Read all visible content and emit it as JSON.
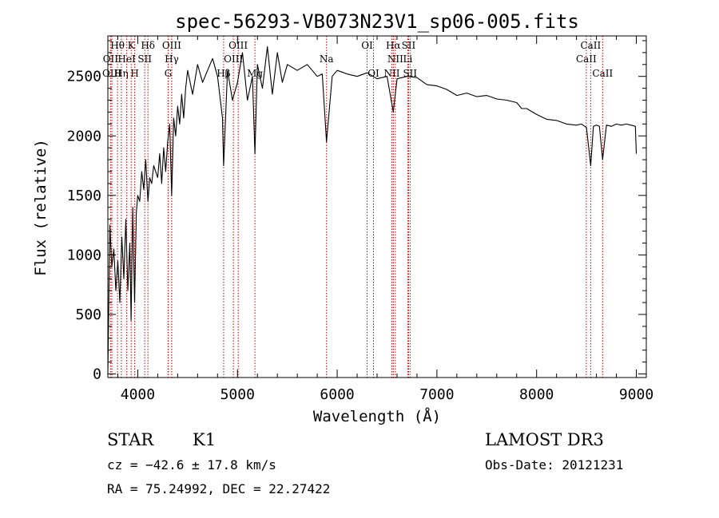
{
  "chart_data": {
    "type": "line",
    "title": "spec-56293-VB073N23V1_sp06-005.fits",
    "xlabel": "Wavelength (Å)",
    "ylabel": "Flux (relative)",
    "xlim": [
      3700,
      9100
    ],
    "ylim": [
      -30,
      2840
    ],
    "grid": false,
    "x_ticks": [
      4000,
      5000,
      6000,
      7000,
      8000,
      9000
    ],
    "y_ticks": [
      0,
      500,
      1000,
      1500,
      2000,
      2500
    ],
    "x_tick_labels": [
      "4000",
      "5000",
      "6000",
      "7000",
      "8000",
      "9000"
    ],
    "y_tick_labels": [
      "0",
      "500",
      "1000",
      "1500",
      "2000",
      "2500"
    ],
    "series": [
      {
        "name": "",
        "x": [
          3700,
          3720,
          3740,
          3760,
          3780,
          3800,
          3820,
          3840,
          3860,
          3880,
          3900,
          3920,
          3933,
          3950,
          3968,
          3985,
          4000,
          4020,
          4040,
          4060,
          4080,
          4102,
          4120,
          4140,
          4160,
          4180,
          4200,
          4220,
          4240,
          4260,
          4280,
          4300,
          4320,
          4340,
          4360,
          4380,
          4400,
          4420,
          4440,
          4460,
          4480,
          4500,
          4550,
          4600,
          4650,
          4700,
          4750,
          4800,
          4850,
          4861,
          4900,
          4950,
          5000,
          5050,
          5100,
          5150,
          5175,
          5200,
          5250,
          5300,
          5350,
          5400,
          5450,
          5500,
          5600,
          5700,
          5800,
          5850,
          5893,
          5950,
          6000,
          6100,
          6200,
          6300,
          6400,
          6500,
          6563,
          6600,
          6700,
          6800,
          6900,
          7000,
          7100,
          7200,
          7300,
          7400,
          7500,
          7600,
          7700,
          7800,
          7850,
          7900,
          8000,
          8100,
          8200,
          8300,
          8400,
          8450,
          8500,
          8542,
          8570,
          8600,
          8630,
          8662,
          8700,
          8750,
          8800,
          8850,
          8900,
          8950,
          8990,
          9000
        ],
        "values": [
          0,
          1250,
          900,
          1050,
          700,
          950,
          600,
          1150,
          800,
          1300,
          700,
          1100,
          450,
          1400,
          600,
          1350,
          1500,
          1450,
          1700,
          1550,
          1800,
          1450,
          1650,
          1600,
          1750,
          1700,
          1650,
          1850,
          1600,
          1900,
          1700,
          1950,
          2100,
          1500,
          2150,
          2000,
          2250,
          2100,
          2350,
          2150,
          2400,
          2550,
          2350,
          2600,
          2450,
          2550,
          2650,
          2500,
          2150,
          1750,
          2550,
          2300,
          2450,
          2700,
          2300,
          2500,
          1850,
          2600,
          2400,
          2750,
          2350,
          2700,
          2450,
          2600,
          2550,
          2600,
          2500,
          2520,
          1950,
          2500,
          2550,
          2520,
          2500,
          2530,
          2480,
          2500,
          2200,
          2480,
          2500,
          2490,
          2430,
          2420,
          2390,
          2340,
          2360,
          2330,
          2340,
          2310,
          2300,
          2280,
          2230,
          2230,
          2180,
          2140,
          2130,
          2100,
          2090,
          2100,
          2070,
          1750,
          2080,
          2090,
          2080,
          1800,
          2090,
          2080,
          2100,
          2090,
          2100,
          2090,
          2080,
          1850
        ]
      }
    ],
    "line_markers": [
      {
        "name": "Hθ",
        "x": 3797
      },
      {
        "name": "OII",
        "x": 3727
      },
      {
        "name": "OIII",
        "x": 3740
      },
      {
        "name": "Hη",
        "x": 3835
      },
      {
        "name": "HeI",
        "x": 3889
      },
      {
        "name": "K",
        "x": 3934
      },
      {
        "name": "H",
        "x": 3969
      },
      {
        "name": "SII",
        "x": 4070
      },
      {
        "name": "Hδ",
        "x": 4102
      },
      {
        "name": "OIII",
        "x": 4340
      },
      {
        "name": "Hγ",
        "x": 4341
      },
      {
        "name": "G",
        "x": 4305
      },
      {
        "name": "Hβ",
        "x": 4861
      },
      {
        "name": "OIII",
        "x": 5007
      },
      {
        "name": "OIII",
        "x": 4959
      },
      {
        "name": "Mg",
        "x": 5175
      },
      {
        "name": "Na",
        "x": 5893
      },
      {
        "name": "OI",
        "x": 6300
      },
      {
        "name": "OI",
        "x": 6364
      },
      {
        "name": "Hα",
        "x": 6563
      },
      {
        "name": "NII",
        "x": 6548
      },
      {
        "name": "NII",
        "x": 6583
      },
      {
        "name": "SII",
        "x": 6716
      },
      {
        "name": "SII",
        "x": 6731
      },
      {
        "name": "Li",
        "x": 6708
      },
      {
        "name": "CaII",
        "x": 8498
      },
      {
        "name": "CaII",
        "x": 8542
      },
      {
        "name": "CaII",
        "x": 8662
      }
    ],
    "marker_labels": [
      {
        "text": "Hθ",
        "x": 3797,
        "row": 0
      },
      {
        "text": "K",
        "x": 3934,
        "row": 0
      },
      {
        "text": "Hδ",
        "x": 4102,
        "row": 0
      },
      {
        "text": "OIII",
        "x": 4340,
        "row": 0
      },
      {
        "text": "OIII",
        "x": 5007,
        "row": 0
      },
      {
        "text": "OI",
        "x": 6300,
        "row": 0
      },
      {
        "text": "Hα",
        "x": 6563,
        "row": 0
      },
      {
        "text": "SII",
        "x": 6716,
        "row": 0
      },
      {
        "text": "CaII",
        "x": 8542,
        "row": 0
      },
      {
        "text": "OII",
        "x": 3727,
        "row": 1
      },
      {
        "text": "HeI",
        "x": 3889,
        "row": 1
      },
      {
        "text": "SII",
        "x": 4070,
        "row": 1
      },
      {
        "text": "Hγ",
        "x": 4341,
        "row": 1
      },
      {
        "text": "OIII",
        "x": 4959,
        "row": 1
      },
      {
        "text": "Na",
        "x": 5893,
        "row": 1
      },
      {
        "text": "NII",
        "x": 6583,
        "row": 1
      },
      {
        "text": "Li",
        "x": 6708,
        "row": 1
      },
      {
        "text": "CaII",
        "x": 8498,
        "row": 1
      },
      {
        "text": "OIII",
        "x": 3740,
        "row": 2
      },
      {
        "text": "Hη",
        "x": 3835,
        "row": 2
      },
      {
        "text": "H",
        "x": 3969,
        "row": 2
      },
      {
        "text": "G",
        "x": 4305,
        "row": 2
      },
      {
        "text": "Hβ",
        "x": 4861,
        "row": 2
      },
      {
        "text": "Mg",
        "x": 5175,
        "row": 2
      },
      {
        "text": "OI",
        "x": 6364,
        "row": 2
      },
      {
        "text": "NII",
        "x": 6548,
        "row": 2
      },
      {
        "text": "SII",
        "x": 6731,
        "row": 2
      },
      {
        "text": "CaII",
        "x": 8662,
        "row": 2
      }
    ],
    "marker_color": "#cc0000",
    "line_color": "#000000"
  },
  "info": {
    "class": "STAR",
    "subclass": "K1",
    "survey": "LAMOST DR3",
    "cz": "cz = −42.6 ± 17.8 km/s",
    "obs_date": "Obs-Date: 20121231",
    "radec": "RA =  75.24992, DEC =  22.27422"
  }
}
